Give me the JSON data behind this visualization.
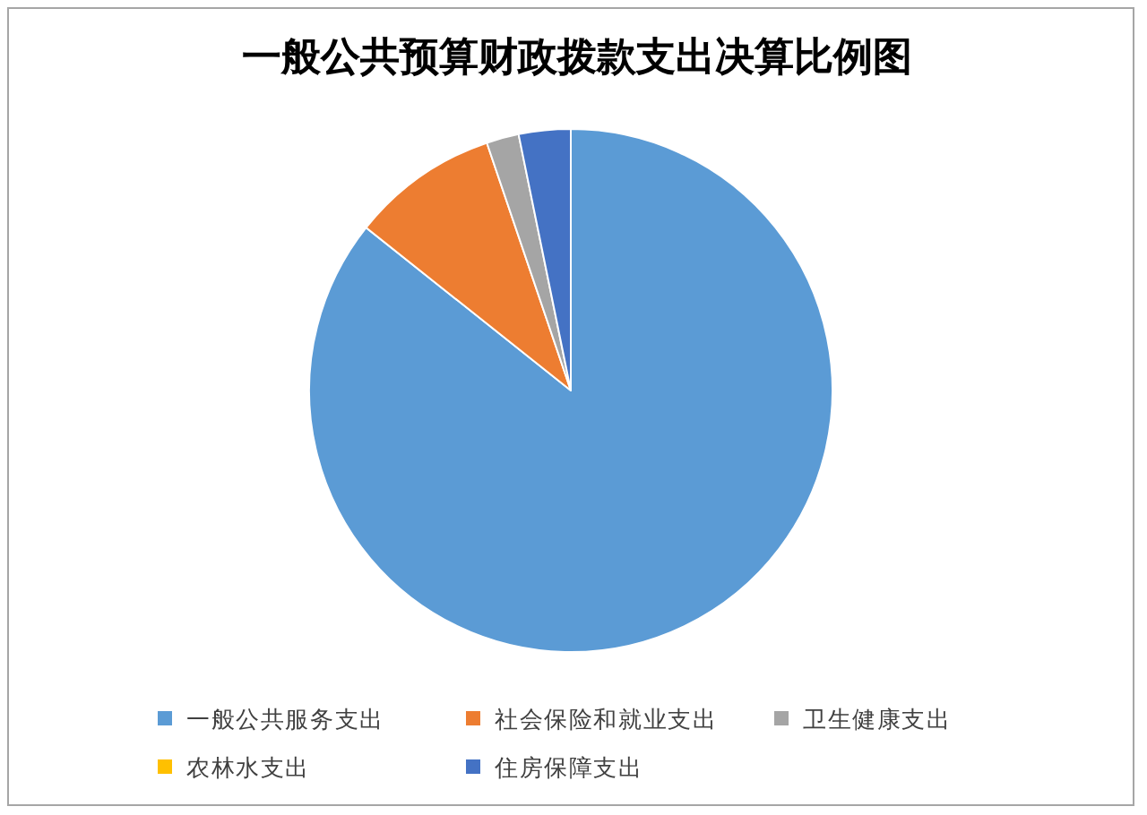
{
  "chart_data": {
    "type": "pie",
    "title": "一般公共预算财政拨款支出决算比例图",
    "categories": [
      "一般公共服务支出",
      "社会保险和就业支出",
      "卫生健康支出",
      "农林水支出",
      "住房保障支出"
    ],
    "values": [
      85.7,
      9.1,
      2.0,
      0,
      3.2
    ],
    "colors": [
      "#5b9bd5",
      "#ed7d31",
      "#a5a5a5",
      "#ffc000",
      "#4472c4"
    ],
    "legend": "bottom"
  }
}
